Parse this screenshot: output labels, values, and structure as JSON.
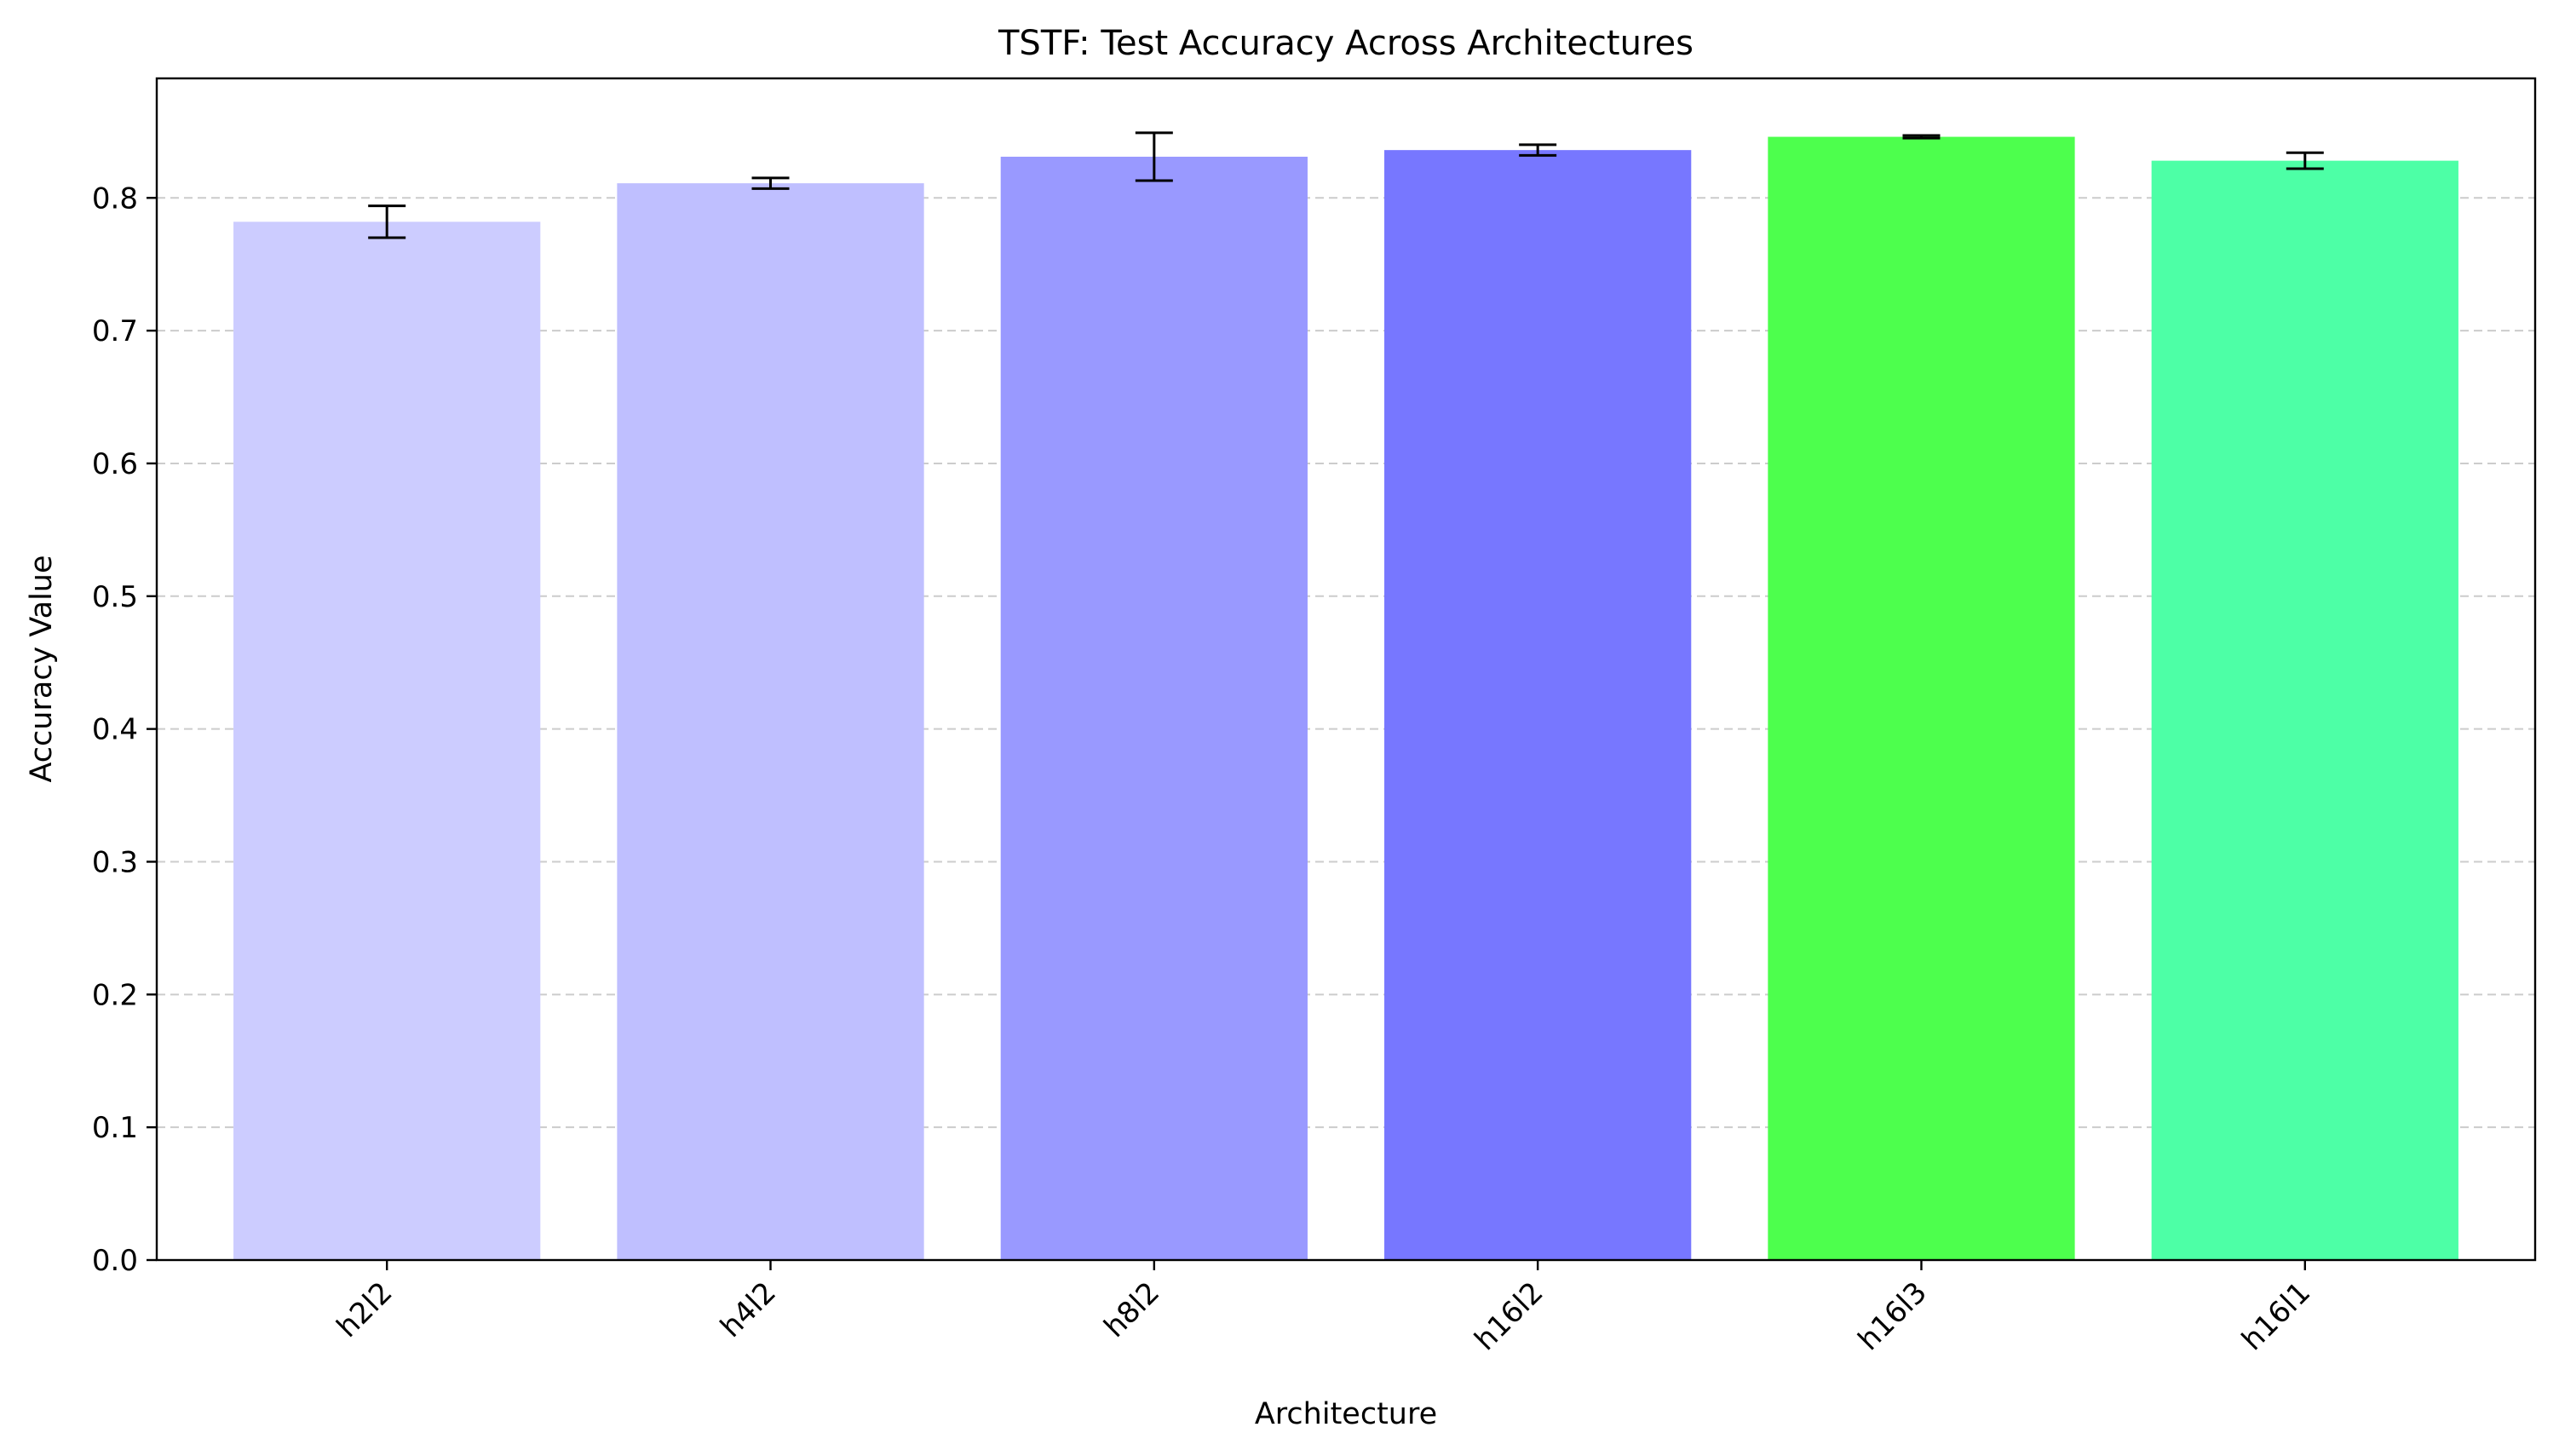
{
  "chart_data": {
    "type": "bar",
    "title": "TSTF: Test Accuracy Across Architectures",
    "xlabel": "Architecture",
    "ylabel": "Accuracy Value",
    "categories": [
      "h2l2",
      "h4l2",
      "h8l2",
      "h16l2",
      "h16l3",
      "h16l1"
    ],
    "values": [
      0.782,
      0.811,
      0.831,
      0.836,
      0.846,
      0.828
    ],
    "errors": [
      0.012,
      0.004,
      0.018,
      0.004,
      0.001,
      0.006
    ],
    "colors": [
      "#ccccff",
      "#bfbfff",
      "#9999ff",
      "#7777ff",
      "#4dff4d",
      "#4dffa6"
    ],
    "ylim": [
      0,
      0.89
    ],
    "yticks": [
      "0.0",
      "0.1",
      "0.2",
      "0.3",
      "0.4",
      "0.5",
      "0.6",
      "0.7",
      "0.8"
    ],
    "grid": "y-dashed",
    "legend": "none"
  }
}
